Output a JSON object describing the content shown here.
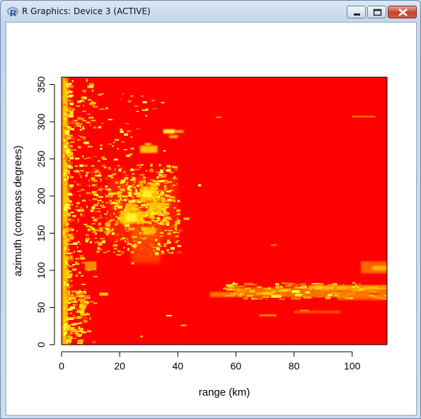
{
  "window": {
    "title": "R Graphics: Device 3 (ACTIVE)",
    "icon": "r-logo-icon",
    "controls": [
      "minimize-icon",
      "maximize-icon",
      "close-icon"
    ]
  },
  "chart_data": {
    "type": "heatmap",
    "title": "",
    "xlabel": "range (km)",
    "ylabel": "azimuth (compass degrees)",
    "xlim": [
      0,
      112
    ],
    "ylim": [
      0,
      360
    ],
    "xticks": [
      "0",
      "20",
      "40",
      "60",
      "80",
      "100"
    ],
    "yticks": [
      "0",
      "50",
      "100",
      "150",
      "200",
      "250",
      "300",
      "350"
    ],
    "grid": false,
    "legend": "none",
    "colors": {
      "background": "#ff0000",
      "low": "#ff4400",
      "mid": "#ff8800",
      "high": "#ffcc00",
      "peak": "#ffff33"
    }
  }
}
